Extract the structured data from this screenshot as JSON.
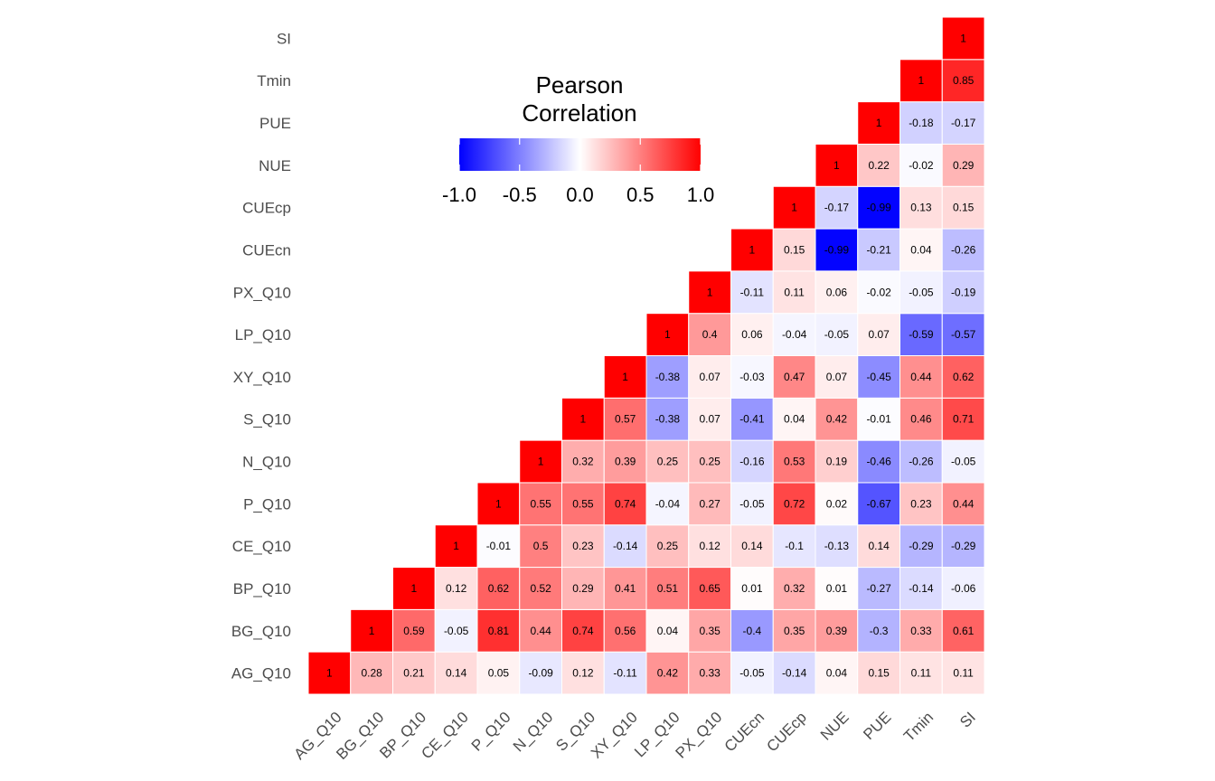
{
  "chart_data": {
    "type": "heatmap",
    "variables": [
      "AG_Q10",
      "BG_Q10",
      "BP_Q10",
      "CE_Q10",
      "P_Q10",
      "N_Q10",
      "S_Q10",
      "XY_Q10",
      "LP_Q10",
      "PX_Q10",
      "CUEcn",
      "CUEcp",
      "NUE",
      "PUE",
      "Tmin",
      "SI"
    ],
    "legend": {
      "title_lines": [
        "Pearson",
        "Correlation"
      ],
      "ticks": [
        "-1.0",
        "-0.5",
        "0.0",
        "0.5",
        "1.0"
      ],
      "tick_values": [
        -1,
        -0.5,
        0,
        0.5,
        1
      ],
      "colors": {
        "low": "#0000FF",
        "mid": "#FFFFFF",
        "high": "#FF0000"
      },
      "placement": "top-center"
    },
    "layout_note": "lower-triangle correlation matrix; columns list row-variable correlations above diagonal",
    "columns": [
      {
        "name": "AG_Q10",
        "values": [
          "1"
        ]
      },
      {
        "name": "BG_Q10",
        "values": [
          "0.28",
          "1"
        ]
      },
      {
        "name": "BP_Q10",
        "values": [
          "0.21",
          "0.59",
          "1"
        ]
      },
      {
        "name": "CE_Q10",
        "values": [
          "0.14",
          "-0.05",
          "0.12",
          "1"
        ]
      },
      {
        "name": "P_Q10",
        "values": [
          "0.05",
          "0.81",
          "0.62",
          "-0.01",
          "1"
        ]
      },
      {
        "name": "N_Q10",
        "values": [
          "-0.09",
          "0.44",
          "0.52",
          "0.5",
          "0.55",
          "1"
        ]
      },
      {
        "name": "S_Q10",
        "values": [
          "0.12",
          "0.74",
          "0.29",
          "0.23",
          "0.55",
          "0.32",
          "1"
        ]
      },
      {
        "name": "XY_Q10",
        "values": [
          "-0.11",
          "0.56",
          "0.41",
          "-0.14",
          "0.74",
          "0.39",
          "0.57",
          "1"
        ]
      },
      {
        "name": "LP_Q10",
        "values": [
          "0.42",
          "0.04",
          "0.51",
          "0.25",
          "-0.04",
          "0.25",
          "-0.38",
          "-0.38",
          "1"
        ]
      },
      {
        "name": "PX_Q10",
        "values": [
          "0.33",
          "0.35",
          "0.65",
          "0.12",
          "0.27",
          "0.25",
          "0.07",
          "0.07",
          "0.4",
          "1"
        ]
      },
      {
        "name": "CUEcn",
        "values": [
          "-0.05",
          "-0.4",
          "0.01",
          "0.14",
          "-0.05",
          "-0.16",
          "-0.41",
          "-0.03",
          "0.06",
          "-0.11",
          "1"
        ]
      },
      {
        "name": "CUEcp",
        "values": [
          "-0.14",
          "0.35",
          "0.32",
          "-0.1",
          "0.72",
          "0.53",
          "0.04",
          "0.47",
          "-0.04",
          "0.11",
          "0.15",
          "1"
        ]
      },
      {
        "name": "NUE",
        "values": [
          "0.04",
          "0.39",
          "0.01",
          "-0.13",
          "0.02",
          "0.19",
          "0.42",
          "0.07",
          "-0.05",
          "0.06",
          "-0.99",
          "-0.17",
          "1"
        ]
      },
      {
        "name": "PUE",
        "values": [
          "0.15",
          "-0.3",
          "-0.27",
          "0.14",
          "-0.67",
          "-0.46",
          "-0.01",
          "-0.45",
          "0.07",
          "-0.02",
          "-0.21",
          "-0.99",
          "0.22",
          "1"
        ]
      },
      {
        "name": "Tmin",
        "values": [
          "0.11",
          "0.33",
          "-0.14",
          "-0.29",
          "0.23",
          "-0.26",
          "0.46",
          "0.44",
          "-0.59",
          "-0.05",
          "0.04",
          "0.13",
          "-0.02",
          "-0.18",
          "1"
        ]
      },
      {
        "name": "SI",
        "values": [
          "0.11",
          "0.61",
          "-0.06",
          "-0.29",
          "0.44",
          "-0.05",
          "0.71",
          "0.62",
          "-0.57",
          "-0.19",
          "-0.26",
          "0.15",
          "0.29",
          "-0.17",
          "0.85",
          "1"
        ]
      }
    ]
  }
}
